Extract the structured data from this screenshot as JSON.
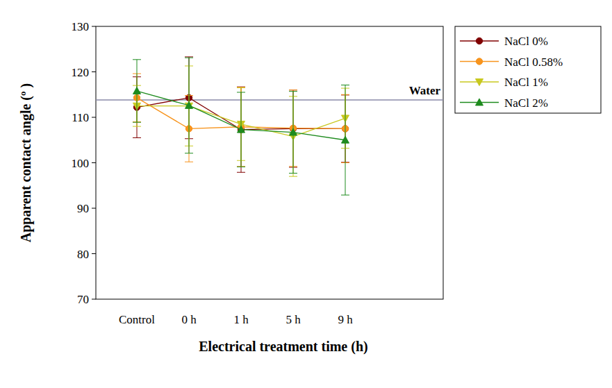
{
  "chart_data": {
    "type": "line",
    "x_label": "Electrical treatment time (h)",
    "y_label": "Apparent contact angle (º )",
    "categories": [
      "Control",
      "0 h",
      "1 h",
      "5 h",
      "9 h"
    ],
    "ylim": [
      70,
      130
    ],
    "yticks": [
      70,
      80,
      90,
      100,
      110,
      120,
      130
    ],
    "legend": "right",
    "reference_lines": [
      {
        "label": "Water",
        "value": 113.8,
        "color": "#8a8aa8"
      }
    ],
    "series": [
      {
        "name": "NaCl 0%",
        "color": "#800000",
        "marker": "circle",
        "values": [
          112.2,
          114.3,
          107.3,
          107.5,
          107.5
        ],
        "errors": [
          6.7,
          9.0,
          9.4,
          8.5,
          7.4
        ]
      },
      {
        "name": "NaCl 0.58%",
        "color": "#f7941d",
        "marker": "circle",
        "values": [
          114.3,
          107.5,
          107.9,
          107.6,
          107.5
        ],
        "errors": [
          5.3,
          7.3,
          8.7,
          8.4,
          7.5
        ]
      },
      {
        "name": "NaCl 1%",
        "color": "#c8c81e",
        "marker": "triangle-down",
        "values": [
          112.5,
          112.5,
          108.5,
          105.8,
          109.8
        ],
        "errors": [
          4.5,
          8.8,
          8.0,
          8.8,
          6.6
        ]
      },
      {
        "name": "NaCl 2%",
        "color": "#1e8b1e",
        "marker": "triangle",
        "values": [
          115.8,
          112.6,
          107.3,
          106.7,
          105.0
        ],
        "errors": [
          6.9,
          10.5,
          8.2,
          9.0,
          12.1
        ]
      }
    ]
  }
}
